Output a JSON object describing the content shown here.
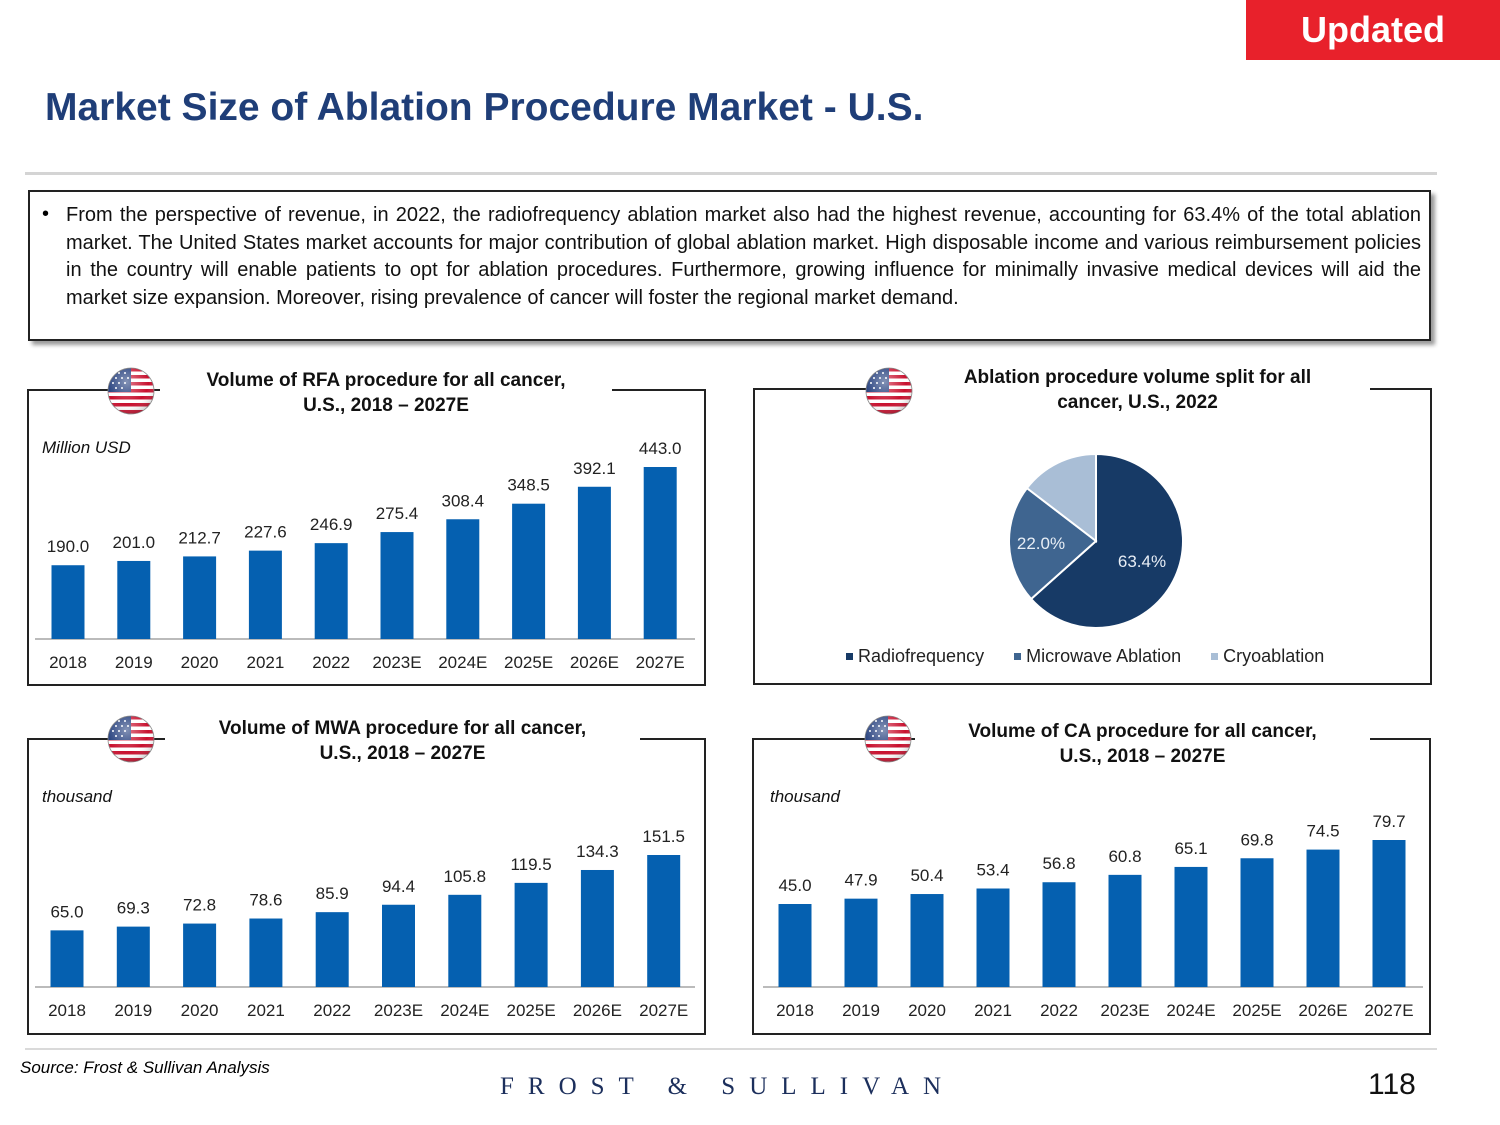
{
  "badge": "Updated",
  "title": "Market Size of Ablation Procedure Market - U.S.",
  "summary": "From the perspective of revenue, in 2022, the radiofrequency ablation market also had the highest revenue, accounting for 63.4% of the total ablation market. The United States market accounts for major contribution of global ablation market. High disposable income and various reimbursement policies in the country will enable patients to opt for ablation procedures. Furthermore, growing influence for minimally invasive medical devices will aid the market size expansion. Moreover, rising prevalence of cancer will foster the regional market demand.",
  "bullet": "•",
  "colors": {
    "bar": "#0560b0",
    "pie": [
      "#173a66",
      "#3f6590",
      "#a9bed6"
    ],
    "badge": "#e8212b",
    "title": "#1f3e78"
  },
  "source": "Source: Frost & Sullivan Analysis",
  "brand": "FROST & SULLIVAN",
  "page_number": "118",
  "chart_data": [
    {
      "type": "bar",
      "title_line1": "Volume of RFA procedure for all cancer,",
      "title_line2": "U.S., 2018 – 2027E",
      "unit": "Million USD",
      "categories": [
        "2018",
        "2019",
        "2020",
        "2021",
        "2022",
        "2023E",
        "2024E",
        "2025E",
        "2026E",
        "2027E"
      ],
      "values": [
        190.0,
        201.0,
        212.7,
        227.6,
        246.9,
        275.4,
        308.4,
        348.5,
        392.1,
        443.0
      ],
      "labels": [
        "190.0",
        "201.0",
        "212.7",
        "227.6",
        "246.9",
        "275.4",
        "308.4",
        "348.5",
        "392.1",
        "443.0"
      ],
      "ylim": [
        0,
        443.0
      ]
    },
    {
      "type": "pie",
      "title_line1": "Ablation procedure volume split for all",
      "title_line2": "cancer, U.S., 2022",
      "slices": [
        {
          "name": "Radiofrequency",
          "value": 63.4,
          "label": "63.4%"
        },
        {
          "name": "Microwave Ablation",
          "value": 22.0,
          "label": "22.0%"
        },
        {
          "name": "Cryoablation",
          "value": 14.6,
          "label": ""
        }
      ]
    },
    {
      "type": "bar",
      "title_line1": "Volume of MWA procedure for all cancer,",
      "title_line2": "U.S., 2018 – 2027E",
      "unit": "thousand",
      "categories": [
        "2018",
        "2019",
        "2020",
        "2021",
        "2022",
        "2023E",
        "2024E",
        "2025E",
        "2026E",
        "2027E"
      ],
      "values": [
        65.0,
        69.3,
        72.8,
        78.6,
        85.9,
        94.4,
        105.8,
        119.5,
        134.3,
        151.5
      ],
      "labels": [
        "65.0",
        "69.3",
        "72.8",
        "78.6",
        "85.9",
        "94.4",
        "105.8",
        "119.5",
        "134.3",
        "151.5"
      ],
      "ylim": [
        0,
        151.5
      ]
    },
    {
      "type": "bar",
      "title_line1": "Volume of CA procedure for all cancer,",
      "title_line2": "U.S., 2018 – 2027E",
      "unit": "thousand",
      "categories": [
        "2018",
        "2019",
        "2020",
        "2021",
        "2022",
        "2023E",
        "2024E",
        "2025E",
        "2026E",
        "2027E"
      ],
      "values": [
        45.0,
        47.9,
        50.4,
        53.4,
        56.8,
        60.8,
        65.1,
        69.8,
        74.5,
        79.7
      ],
      "labels": [
        "45.0",
        "47.9",
        "50.4",
        "53.4",
        "56.8",
        "60.8",
        "65.1",
        "69.8",
        "74.5",
        "79.7"
      ],
      "ylim": [
        0,
        79.7
      ]
    }
  ]
}
